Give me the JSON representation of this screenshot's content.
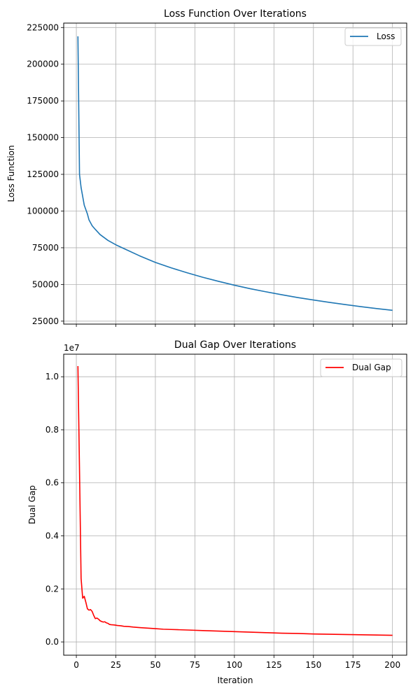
{
  "chart_data": [
    {
      "type": "line",
      "title": "Loss Function Over Iterations",
      "xlabel": "",
      "ylabel": "Loss Function",
      "xlim": [
        -8,
        209
      ],
      "ylim": [
        23000,
        228000
      ],
      "xticks": [
        0,
        25,
        50,
        75,
        100,
        125,
        150,
        175,
        200
      ],
      "show_xtick_labels": false,
      "yticks": [
        25000,
        50000,
        75000,
        100000,
        125000,
        150000,
        175000,
        200000,
        225000
      ],
      "ytick_labels": [
        "25000",
        "50000",
        "75000",
        "100000",
        "125000",
        "150000",
        "175000",
        "200000",
        "225000"
      ],
      "grid": true,
      "legend_position": "top-right",
      "series": [
        {
          "name": "Loss",
          "color": "#1f77b4",
          "x": [
            1,
            2,
            3,
            4,
            5,
            6,
            7,
            8,
            10,
            12,
            15,
            20,
            25,
            30,
            40,
            50,
            60,
            70,
            80,
            90,
            100,
            110,
            120,
            130,
            140,
            150,
            160,
            170,
            180,
            190,
            200
          ],
          "y": [
            219000,
            125000,
            116000,
            110000,
            104000,
            101000,
            98000,
            94000,
            90000,
            87500,
            84000,
            80000,
            77000,
            74500,
            69500,
            65000,
            61300,
            58000,
            54900,
            52100,
            49500,
            47100,
            45000,
            43000,
            41100,
            39400,
            37800,
            36300,
            34900,
            33600,
            32400
          ]
        }
      ]
    },
    {
      "type": "line",
      "title": "Dual Gap Over Iterations",
      "xlabel": "Iteration",
      "ylabel": "Dual Gap",
      "offset_text": "1e7",
      "xlim": [
        -8,
        209
      ],
      "ylim": [
        -0.05,
        1.085
      ],
      "xticks": [
        0,
        25,
        50,
        75,
        100,
        125,
        150,
        175,
        200
      ],
      "xtick_labels": [
        "0",
        "25",
        "50",
        "75",
        "100",
        "125",
        "150",
        "175",
        "200"
      ],
      "show_xtick_labels": true,
      "yticks": [
        0,
        0.2,
        0.4,
        0.6,
        0.8,
        1.0
      ],
      "ytick_labels": [
        "0.0",
        "0.2",
        "0.4",
        "0.6",
        "0.8",
        "1.0"
      ],
      "grid": true,
      "legend_position": "top-right",
      "series": [
        {
          "name": "Dual Gap",
          "color": "#ff0000",
          "x": [
            1,
            2,
            3,
            4,
            5,
            6,
            7,
            8,
            9,
            10,
            11,
            12,
            13,
            14,
            15,
            16,
            17,
            18,
            19,
            20,
            21,
            22,
            24,
            26,
            28,
            30,
            33,
            36,
            40,
            45,
            50,
            55,
            60,
            65,
            70,
            80,
            90,
            100,
            110,
            120,
            130,
            140,
            150,
            160,
            170,
            180,
            190,
            200
          ],
          "y": [
            1.04,
            0.65,
            0.24,
            0.165,
            0.172,
            0.15,
            0.125,
            0.12,
            0.122,
            0.115,
            0.1,
            0.088,
            0.09,
            0.086,
            0.08,
            0.077,
            0.075,
            0.076,
            0.072,
            0.07,
            0.066,
            0.065,
            0.064,
            0.062,
            0.061,
            0.059,
            0.058,
            0.056,
            0.054,
            0.052,
            0.05,
            0.048,
            0.047,
            0.046,
            0.045,
            0.043,
            0.041,
            0.039,
            0.037,
            0.035,
            0.033,
            0.032,
            0.03,
            0.029,
            0.028,
            0.027,
            0.026,
            0.025
          ]
        }
      ]
    }
  ]
}
